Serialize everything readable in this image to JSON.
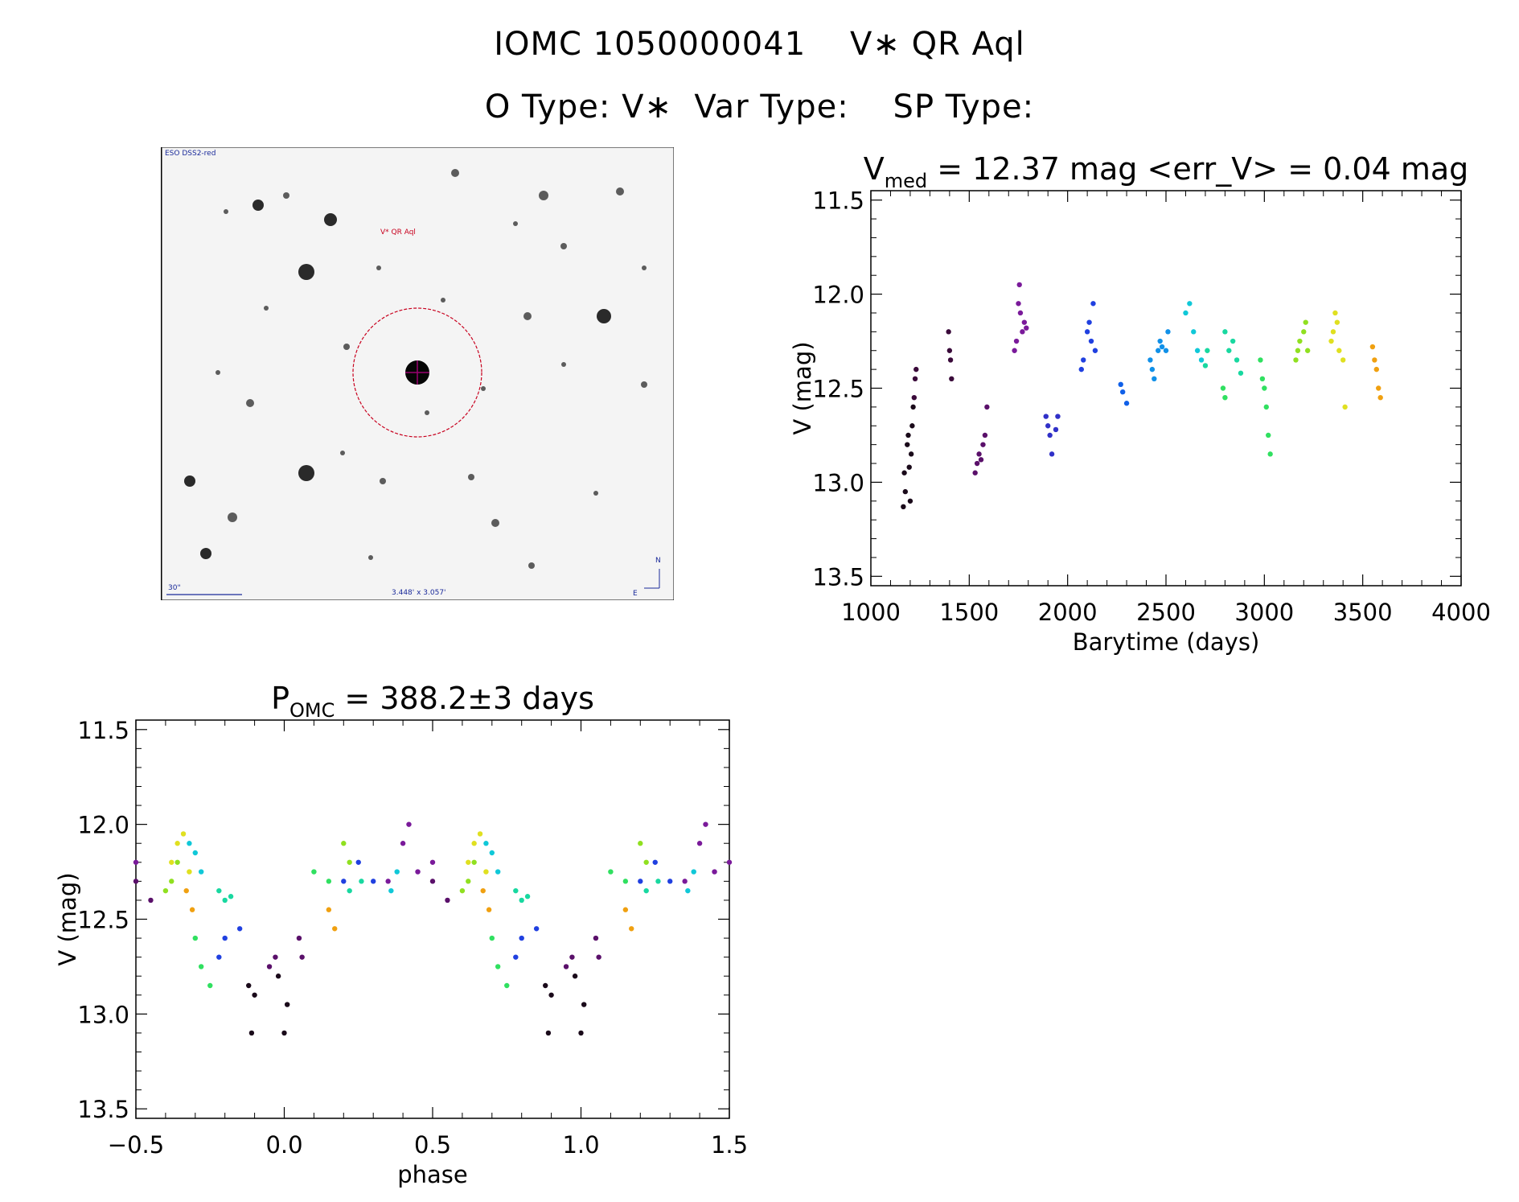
{
  "header": {
    "title": "IOMC 1050000041    V∗ QR Aql",
    "subtitle": "O Type: V∗  Var Type:    SP Type:"
  },
  "finder_chart": {
    "survey_label": "ESO DSS2-red",
    "target_label": "V* QR Aql",
    "scale_label": "30\"",
    "fov_label": "3.448' x 3.057'",
    "compass_n": "N",
    "compass_e": "E",
    "marker_color": "#c8001e"
  },
  "chart_data": [
    {
      "type": "scatter",
      "id": "light-curve",
      "title_parts": {
        "main": "V",
        "sub": "med",
        "rest": " = 12.37 mag <err_V> = 0.04 mag"
      },
      "xlabel": "Barytime (days)",
      "ylabel": "V (mag)",
      "xlim": [
        1000,
        4000
      ],
      "ylim": [
        13.55,
        11.45
      ],
      "x_ticks": [
        1000,
        1500,
        2000,
        2500,
        3000,
        3500,
        4000
      ],
      "x_tick_labels": [
        "1000",
        "1500",
        "2000",
        "2500",
        "3000",
        "3500",
        "4000"
      ],
      "y_ticks": [
        11.5,
        12.0,
        12.5,
        13.0,
        13.5
      ],
      "y_tick_labels": [
        "11.5",
        "12.0",
        "12.5",
        "13.0",
        "13.5"
      ],
      "series": [
        {
          "name": "seg1",
          "color": "#1a0a1a",
          "points": [
            [
              1165,
              13.13
            ],
            [
              1170,
              12.95
            ],
            [
              1175,
              13.05
            ],
            [
              1185,
              12.8
            ],
            [
              1190,
              12.75
            ],
            [
              1195,
              12.92
            ],
            [
              1200,
              13.1
            ],
            [
              1205,
              12.85
            ],
            [
              1210,
              12.7
            ],
            [
              1215,
              12.6
            ]
          ]
        },
        {
          "name": "seg2",
          "color": "#3a0a3a",
          "points": [
            [
              1220,
              12.55
            ],
            [
              1225,
              12.45
            ],
            [
              1230,
              12.4
            ],
            [
              1395,
              12.2
            ],
            [
              1400,
              12.3
            ],
            [
              1405,
              12.35
            ],
            [
              1410,
              12.45
            ]
          ]
        },
        {
          "name": "seg3",
          "color": "#5a106a",
          "points": [
            [
              1530,
              12.95
            ],
            [
              1540,
              12.9
            ],
            [
              1550,
              12.85
            ],
            [
              1560,
              12.88
            ],
            [
              1570,
              12.8
            ],
            [
              1580,
              12.75
            ],
            [
              1590,
              12.6
            ]
          ]
        },
        {
          "name": "seg4",
          "color": "#7a1a9a",
          "points": [
            [
              1730,
              12.3
            ],
            [
              1740,
              12.25
            ],
            [
              1750,
              12.05
            ],
            [
              1755,
              11.95
            ],
            [
              1760,
              12.1
            ],
            [
              1770,
              12.2
            ],
            [
              1780,
              12.15
            ],
            [
              1790,
              12.18
            ]
          ]
        },
        {
          "name": "seg5",
          "color": "#3030c8",
          "points": [
            [
              1890,
              12.65
            ],
            [
              1900,
              12.7
            ],
            [
              1910,
              12.75
            ],
            [
              1920,
              12.85
            ],
            [
              1940,
              12.72
            ],
            [
              1950,
              12.65
            ]
          ]
        },
        {
          "name": "seg6",
          "color": "#2040e0",
          "points": [
            [
              2070,
              12.4
            ],
            [
              2080,
              12.35
            ],
            [
              2100,
              12.2
            ],
            [
              2110,
              12.15
            ],
            [
              2120,
              12.25
            ],
            [
              2130,
              12.05
            ],
            [
              2140,
              12.3
            ]
          ]
        },
        {
          "name": "seg7",
          "color": "#1060e8",
          "points": [
            [
              2270,
              12.48
            ],
            [
              2280,
              12.52
            ],
            [
              2300,
              12.58
            ]
          ]
        },
        {
          "name": "seg8",
          "color": "#1090e8",
          "points": [
            [
              2420,
              12.35
            ],
            [
              2430,
              12.4
            ],
            [
              2440,
              12.45
            ],
            [
              2460,
              12.3
            ],
            [
              2470,
              12.25
            ],
            [
              2480,
              12.28
            ],
            [
              2500,
              12.3
            ],
            [
              2510,
              12.2
            ]
          ]
        },
        {
          "name": "seg9",
          "color": "#10c8d8",
          "points": [
            [
              2600,
              12.1
            ],
            [
              2620,
              12.05
            ],
            [
              2640,
              12.2
            ],
            [
              2660,
              12.3
            ],
            [
              2680,
              12.35
            ]
          ]
        },
        {
          "name": "seg10",
          "color": "#18d8a0",
          "points": [
            [
              2700,
              12.38
            ],
            [
              2710,
              12.3
            ],
            [
              2800,
              12.2
            ],
            [
              2820,
              12.3
            ],
            [
              2840,
              12.25
            ],
            [
              2860,
              12.35
            ],
            [
              2880,
              12.42
            ]
          ]
        },
        {
          "name": "seg11",
          "color": "#30e060",
          "points": [
            [
              2790,
              12.5
            ],
            [
              2800,
              12.55
            ],
            [
              2980,
              12.35
            ],
            [
              2990,
              12.45
            ],
            [
              3000,
              12.5
            ],
            [
              3010,
              12.6
            ],
            [
              3020,
              12.75
            ],
            [
              3030,
              12.85
            ]
          ]
        },
        {
          "name": "seg12",
          "color": "#90e020",
          "points": [
            [
              3160,
              12.35
            ],
            [
              3170,
              12.3
            ],
            [
              3180,
              12.25
            ],
            [
              3200,
              12.2
            ],
            [
              3210,
              12.15
            ],
            [
              3220,
              12.3
            ]
          ]
        },
        {
          "name": "seg13",
          "color": "#e0e020",
          "points": [
            [
              3340,
              12.25
            ],
            [
              3350,
              12.2
            ],
            [
              3360,
              12.1
            ],
            [
              3370,
              12.15
            ],
            [
              3380,
              12.3
            ],
            [
              3400,
              12.35
            ],
            [
              3410,
              12.6
            ]
          ]
        },
        {
          "name": "seg14",
          "color": "#f0a010",
          "points": [
            [
              3550,
              12.28
            ],
            [
              3560,
              12.35
            ],
            [
              3570,
              12.4
            ],
            [
              3580,
              12.5
            ],
            [
              3590,
              12.55
            ]
          ]
        }
      ]
    },
    {
      "type": "scatter",
      "id": "phase-curve",
      "title_parts": {
        "main": "P",
        "sub": "OMC",
        "rest": " = 388.2±3 days"
      },
      "xlabel": "phase",
      "ylabel": "V (mag)",
      "xlim": [
        -0.5,
        1.5
      ],
      "ylim": [
        13.55,
        11.45
      ],
      "x_ticks": [
        -0.5,
        0.0,
        0.5,
        1.0,
        1.5
      ],
      "x_tick_labels": [
        "−0.5",
        "0.0",
        "0.5",
        "1.0",
        "1.5"
      ],
      "y_ticks": [
        11.5,
        12.0,
        12.5,
        13.0,
        13.5
      ],
      "y_tick_labels": [
        "11.5",
        "12.0",
        "12.5",
        "13.0",
        "13.5"
      ],
      "series": [
        {
          "name": "ph-dark",
          "color": "#1a0a1a",
          "points": [
            [
              -0.12,
              12.85
            ],
            [
              -0.11,
              13.1
            ],
            [
              -0.1,
              12.9
            ],
            [
              -0.02,
              12.8
            ],
            [
              0.0,
              13.1
            ],
            [
              0.01,
              12.95
            ],
            [
              0.88,
              12.85
            ],
            [
              0.89,
              13.1
            ],
            [
              0.9,
              12.9
            ],
            [
              0.98,
              12.8
            ],
            [
              1.0,
              13.1
            ],
            [
              1.01,
              12.95
            ]
          ]
        },
        {
          "name": "ph-plum",
          "color": "#5a106a",
          "points": [
            [
              -0.5,
              12.3
            ],
            [
              -0.45,
              12.4
            ],
            [
              -0.05,
              12.75
            ],
            [
              -0.03,
              12.7
            ],
            [
              0.05,
              12.6
            ],
            [
              0.06,
              12.7
            ],
            [
              0.5,
              12.3
            ],
            [
              0.55,
              12.4
            ],
            [
              0.95,
              12.75
            ],
            [
              0.97,
              12.7
            ],
            [
              1.05,
              12.6
            ],
            [
              1.06,
              12.7
            ]
          ]
        },
        {
          "name": "ph-violet",
          "color": "#7a1a9a",
          "points": [
            [
              -0.5,
              12.2
            ],
            [
              0.35,
              12.3
            ],
            [
              0.4,
              12.1
            ],
            [
              0.42,
              12.0
            ],
            [
              0.45,
              12.25
            ],
            [
              0.5,
              12.2
            ],
            [
              1.35,
              12.3
            ],
            [
              1.4,
              12.1
            ],
            [
              1.42,
              12.0
            ],
            [
              1.45,
              12.25
            ],
            [
              1.5,
              12.2
            ]
          ]
        },
        {
          "name": "ph-blue",
          "color": "#2040e0",
          "points": [
            [
              -0.22,
              12.7
            ],
            [
              -0.2,
              12.6
            ],
            [
              -0.15,
              12.55
            ],
            [
              0.2,
              12.3
            ],
            [
              0.25,
              12.2
            ],
            [
              0.3,
              12.3
            ],
            [
              0.78,
              12.7
            ],
            [
              0.8,
              12.6
            ],
            [
              0.85,
              12.55
            ],
            [
              1.2,
              12.3
            ],
            [
              1.25,
              12.2
            ],
            [
              1.3,
              12.3
            ]
          ]
        },
        {
          "name": "ph-cyan",
          "color": "#10c8d8",
          "points": [
            [
              -0.32,
              12.1
            ],
            [
              -0.3,
              12.15
            ],
            [
              -0.28,
              12.25
            ],
            [
              0.36,
              12.35
            ],
            [
              0.38,
              12.25
            ],
            [
              0.68,
              12.1
            ],
            [
              0.7,
              12.15
            ],
            [
              0.72,
              12.25
            ],
            [
              1.36,
              12.35
            ],
            [
              1.38,
              12.25
            ]
          ]
        },
        {
          "name": "ph-teal",
          "color": "#18d8a0",
          "points": [
            [
              -0.22,
              12.35
            ],
            [
              -0.2,
              12.4
            ],
            [
              -0.18,
              12.38
            ],
            [
              0.22,
              12.35
            ],
            [
              0.26,
              12.3
            ],
            [
              0.78,
              12.35
            ],
            [
              0.8,
              12.4
            ],
            [
              0.82,
              12.38
            ],
            [
              1.22,
              12.35
            ],
            [
              1.26,
              12.3
            ]
          ]
        },
        {
          "name": "ph-green",
          "color": "#30e060",
          "points": [
            [
              -0.3,
              12.6
            ],
            [
              -0.28,
              12.75
            ],
            [
              -0.25,
              12.85
            ],
            [
              0.1,
              12.25
            ],
            [
              0.15,
              12.3
            ],
            [
              0.7,
              12.6
            ],
            [
              0.72,
              12.75
            ],
            [
              0.75,
              12.85
            ],
            [
              1.1,
              12.25
            ],
            [
              1.15,
              12.3
            ]
          ]
        },
        {
          "name": "ph-lime",
          "color": "#90e020",
          "points": [
            [
              -0.4,
              12.35
            ],
            [
              -0.38,
              12.3
            ],
            [
              -0.36,
              12.2
            ],
            [
              0.2,
              12.1
            ],
            [
              0.22,
              12.2
            ],
            [
              0.6,
              12.35
            ],
            [
              0.62,
              12.3
            ],
            [
              0.64,
              12.2
            ],
            [
              1.2,
              12.1
            ],
            [
              1.22,
              12.2
            ]
          ]
        },
        {
          "name": "ph-yellow",
          "color": "#e0e020",
          "points": [
            [
              -0.38,
              12.2
            ],
            [
              -0.36,
              12.1
            ],
            [
              -0.34,
              12.05
            ],
            [
              -0.32,
              12.25
            ],
            [
              0.62,
              12.2
            ],
            [
              0.64,
              12.1
            ],
            [
              0.66,
              12.05
            ],
            [
              0.68,
              12.25
            ]
          ]
        },
        {
          "name": "ph-orange",
          "color": "#f0a010",
          "points": [
            [
              -0.33,
              12.35
            ],
            [
              -0.31,
              12.45
            ],
            [
              0.15,
              12.45
            ],
            [
              0.17,
              12.55
            ],
            [
              0.67,
              12.35
            ],
            [
              0.69,
              12.45
            ],
            [
              1.15,
              12.45
            ],
            [
              1.17,
              12.55
            ]
          ]
        }
      ]
    }
  ]
}
